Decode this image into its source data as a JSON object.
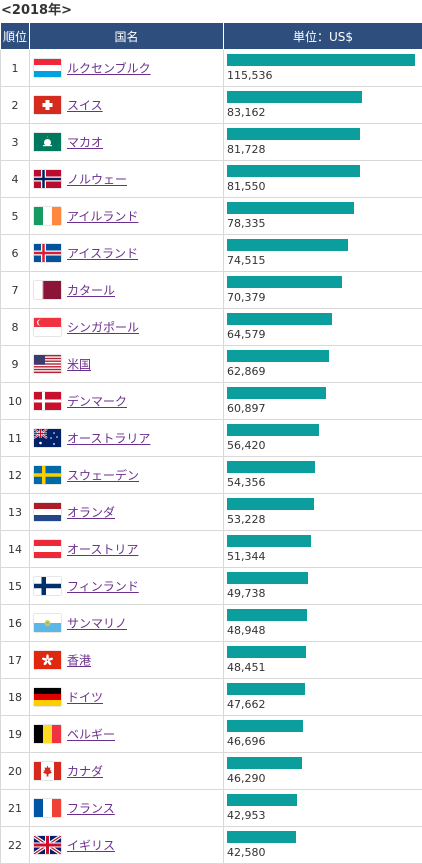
{
  "caption": "<2018年>",
  "headers": {
    "rank": "順位",
    "country": "国名",
    "value": "単位：US$"
  },
  "bar_color": "#0b9e9c",
  "header_color": "#2e4e7e",
  "link_color": "#6b2f8e",
  "chart_data": {
    "type": "bar",
    "title": "<2018年>",
    "ylabel": "単位：US$",
    "categories": [
      "ルクセンブルク",
      "スイス",
      "マカオ",
      "ノルウェー",
      "アイルランド",
      "アイスランド",
      "カタール",
      "シンガポール",
      "米国",
      "デンマーク",
      "オーストラリア",
      "スウェーデン",
      "オランダ",
      "オーストリア",
      "フィンランド",
      "サンマリノ",
      "香港",
      "ドイツ",
      "ベルギー",
      "カナダ",
      "フランス",
      "イギリス"
    ],
    "ranks": [
      1,
      2,
      3,
      4,
      5,
      6,
      7,
      8,
      9,
      10,
      11,
      12,
      13,
      14,
      15,
      16,
      17,
      18,
      19,
      20,
      21,
      22
    ],
    "values": [
      115536,
      83162,
      81728,
      81550,
      78335,
      74515,
      70379,
      64579,
      62869,
      60897,
      56420,
      54356,
      53228,
      51344,
      49738,
      48948,
      48451,
      47662,
      46696,
      46290,
      42953,
      42580
    ],
    "value_labels": [
      "115,536",
      "83,162",
      "81,728",
      "81,550",
      "78,335",
      "74,515",
      "70,379",
      "64,579",
      "62,869",
      "60,897",
      "56,420",
      "54,356",
      "53,228",
      "51,344",
      "49,738",
      "48,948",
      "48,451",
      "47,662",
      "46,696",
      "46,290",
      "42,953",
      "42,580"
    ],
    "flags": [
      "luxembourg-flag-icon",
      "switzerland-flag-icon",
      "macau-flag-icon",
      "norway-flag-icon",
      "ireland-flag-icon",
      "iceland-flag-icon",
      "qatar-flag-icon",
      "singapore-flag-icon",
      "usa-flag-icon",
      "denmark-flag-icon",
      "australia-flag-icon",
      "sweden-flag-icon",
      "netherlands-flag-icon",
      "austria-flag-icon",
      "finland-flag-icon",
      "san-marino-flag-icon",
      "hong-kong-flag-icon",
      "germany-flag-icon",
      "belgium-flag-icon",
      "canada-flag-icon",
      "france-flag-icon",
      "uk-flag-icon"
    ],
    "xlim": [
      0,
      115536
    ]
  }
}
